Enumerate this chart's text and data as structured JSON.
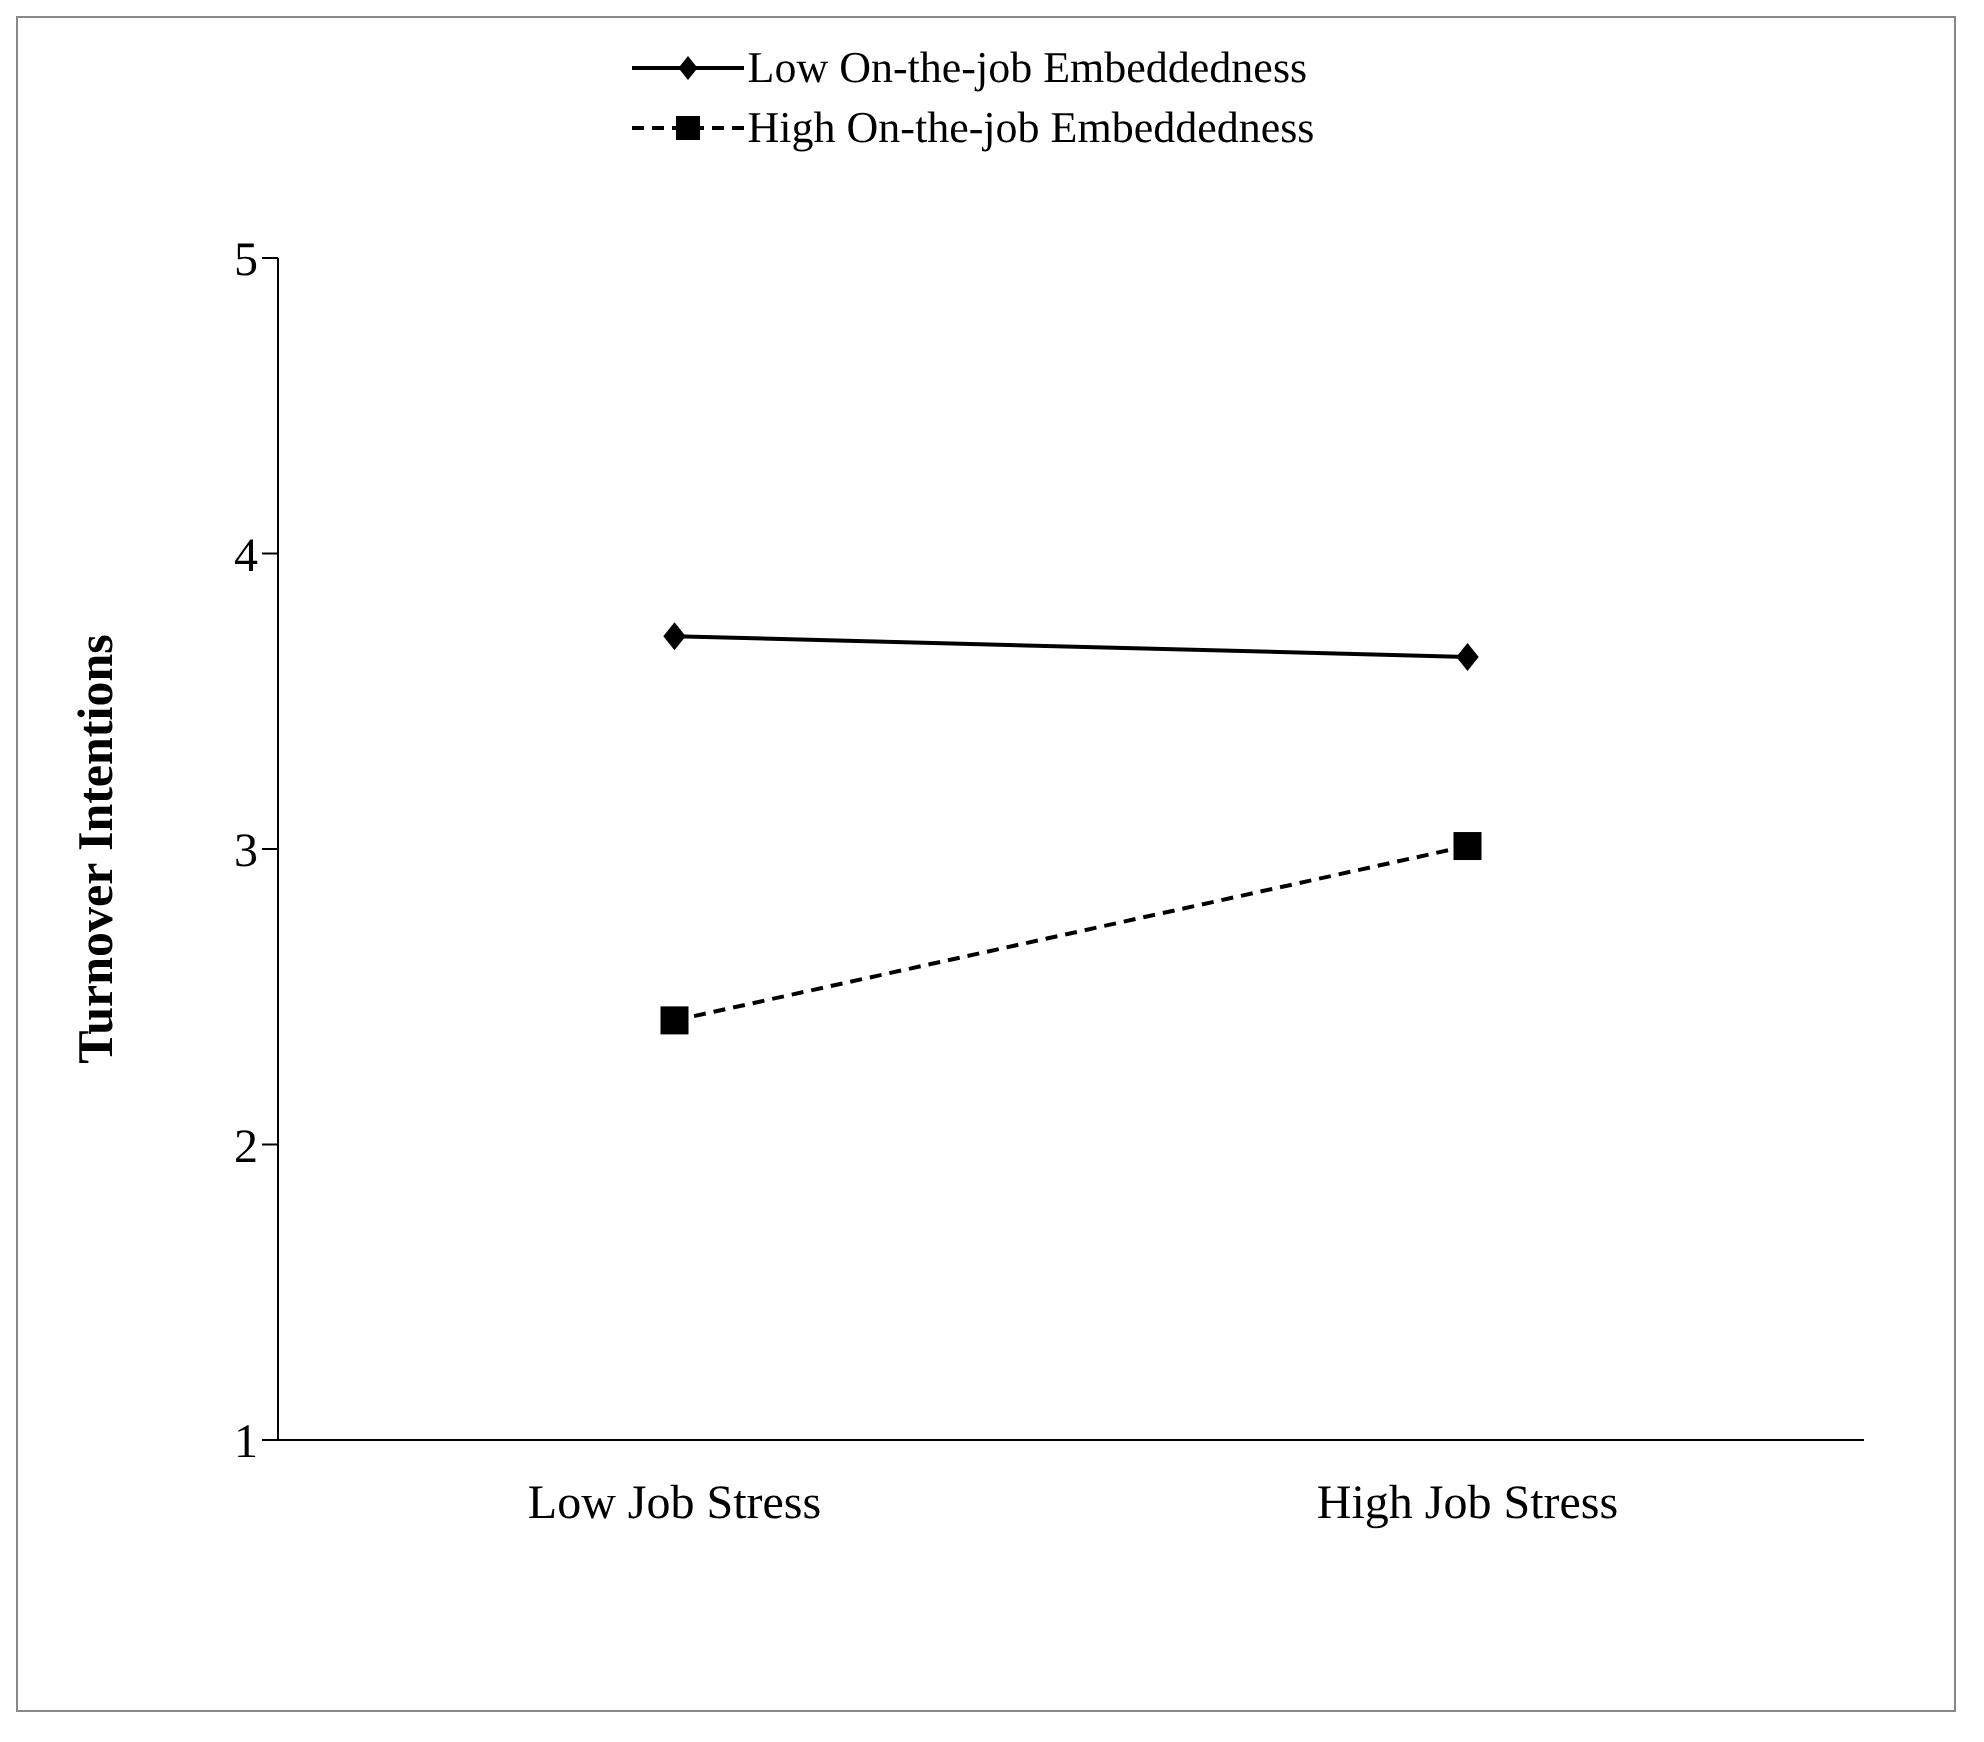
{
  "chart_data": {
    "type": "line",
    "ylabel": "Turnover Intentions",
    "categories": [
      "Low Job Stress",
      "High Job Stress"
    ],
    "series": [
      {
        "name": "Low On-the-job Embeddedness",
        "color": "#000000",
        "values": [
          3.72,
          3.65
        ],
        "marker": "diamond",
        "line_style": "solid"
      },
      {
        "name": "High On-the-job Embeddedness",
        "color": "#000000",
        "values": [
          2.42,
          3.01
        ],
        "marker": "square",
        "line_style": "dashed"
      }
    ],
    "ylim": [
      1,
      5
    ],
    "yticks": [
      1,
      2,
      3,
      4,
      5
    ],
    "grid": false,
    "legend": "top"
  }
}
